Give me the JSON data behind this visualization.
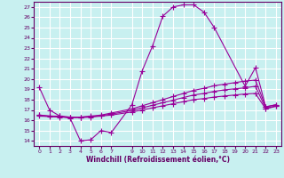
{
  "xlabel": "Windchill (Refroidissement éolien,°C)",
  "bg_color": "#c8f0f0",
  "grid_color": "#ffffff",
  "line_color": "#990099",
  "xlim": [
    -0.5,
    23.5
  ],
  "ylim": [
    13.5,
    27.5
  ],
  "yticks": [
    14,
    15,
    16,
    17,
    18,
    19,
    20,
    21,
    22,
    23,
    24,
    25,
    26,
    27
  ],
  "xticks": [
    0,
    1,
    2,
    3,
    4,
    5,
    6,
    7,
    9,
    10,
    11,
    12,
    13,
    14,
    15,
    16,
    17,
    18,
    19,
    20,
    21,
    22,
    23
  ],
  "line1_x": [
    0,
    1,
    2,
    3,
    4,
    5,
    6,
    7,
    9,
    10,
    11,
    12,
    13,
    14,
    15,
    16,
    17,
    20,
    21,
    22,
    23
  ],
  "line1_y": [
    19.2,
    17.0,
    16.4,
    16.2,
    14.0,
    14.1,
    15.0,
    14.8,
    17.5,
    20.8,
    23.2,
    26.1,
    27.0,
    27.2,
    27.2,
    26.5,
    25.0,
    19.3,
    21.1,
    17.3,
    17.5
  ],
  "line2_x": [
    0,
    1,
    2,
    3,
    4,
    5,
    6,
    7,
    9,
    10,
    11,
    12,
    13,
    14,
    15,
    16,
    17,
    18,
    19,
    20,
    21,
    22,
    23
  ],
  "line2_y": [
    16.5,
    16.4,
    16.4,
    16.3,
    16.3,
    16.4,
    16.5,
    16.7,
    17.1,
    17.4,
    17.7,
    18.0,
    18.3,
    18.6,
    18.9,
    19.1,
    19.35,
    19.5,
    19.65,
    19.8,
    19.9,
    17.3,
    17.5
  ],
  "line3_x": [
    0,
    1,
    2,
    3,
    4,
    5,
    6,
    7,
    9,
    10,
    11,
    12,
    13,
    14,
    15,
    16,
    17,
    18,
    19,
    20,
    21,
    22,
    23
  ],
  "line3_y": [
    16.5,
    16.4,
    16.35,
    16.3,
    16.3,
    16.35,
    16.45,
    16.6,
    16.95,
    17.2,
    17.45,
    17.7,
    17.95,
    18.2,
    18.45,
    18.6,
    18.8,
    18.95,
    19.05,
    19.15,
    19.3,
    17.15,
    17.4
  ],
  "line4_x": [
    0,
    1,
    2,
    3,
    4,
    5,
    6,
    7,
    9,
    10,
    11,
    12,
    13,
    14,
    15,
    16,
    17,
    18,
    19,
    20,
    21,
    22,
    23
  ],
  "line4_y": [
    16.4,
    16.35,
    16.3,
    16.25,
    16.25,
    16.3,
    16.4,
    16.5,
    16.8,
    17.0,
    17.2,
    17.4,
    17.6,
    17.8,
    18.0,
    18.1,
    18.25,
    18.35,
    18.45,
    18.55,
    18.6,
    17.1,
    17.35
  ]
}
